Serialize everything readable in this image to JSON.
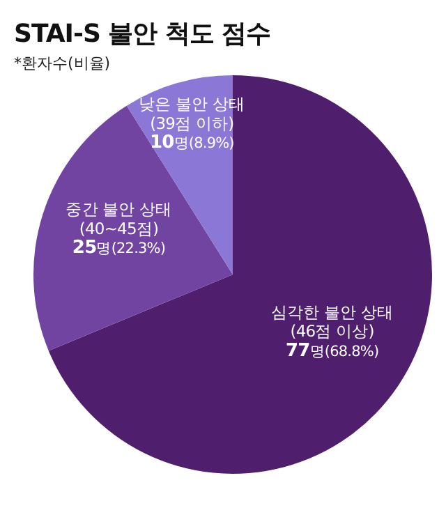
{
  "chart_data": {
    "type": "pie",
    "title": "STAI-S 불안 척도 점수",
    "subtitle": "*환자수(비율)",
    "categories": [
      "심각한 불안 상태\n(46점 이상)",
      "중간 불안 상태\n(40~45점)",
      "낮은 불안 상태\n(39점 이하)"
    ],
    "values": [
      77,
      25,
      10
    ],
    "value_labels": [
      "77명(68.8%)",
      "25명(22.3%)",
      "10명(8.9%)"
    ],
    "colors": [
      "#4f1f6e",
      "#7044a0",
      "#8b78d6"
    ]
  }
}
